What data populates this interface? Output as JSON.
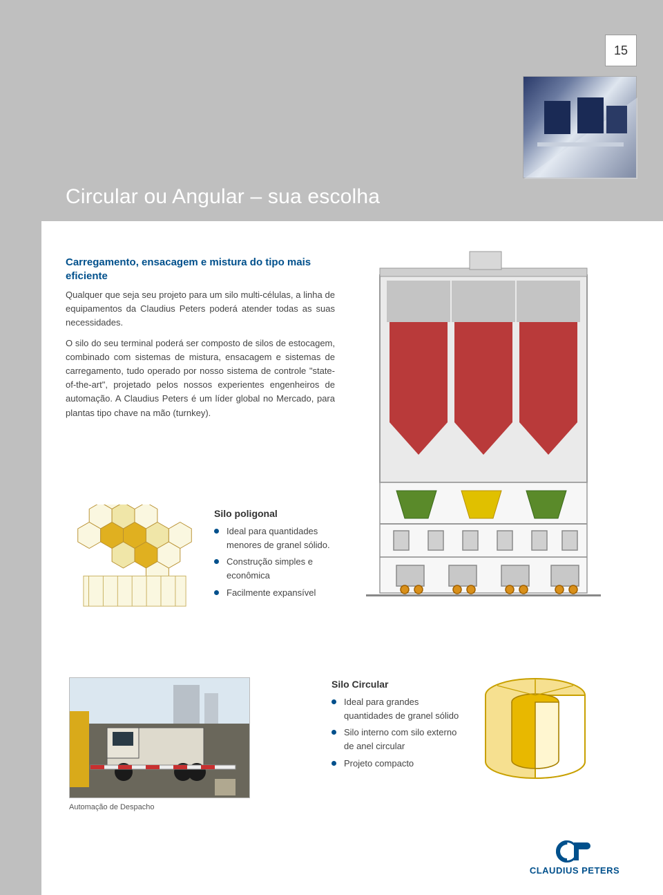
{
  "page_number": "15",
  "title": "Circular ou Angular – sua escolha",
  "subhead": "Carregamento, ensacagem e mistura  do tipo mais eficiente",
  "para1": "Qualquer que seja seu projeto para um silo multi-células, a linha de equipamentos da Claudius Peters poderá atender todas as suas necessidades.",
  "para2": "O silo do seu terminal poderá ser composto de silos de estocagem, combinado com sistemas de mistura, ensacagem e sistemas de carregamento, tudo operado por nosso sistema de controle \"state-of-the-art\", projetado pelos nossos experientes engenheiros de automação. A Claudius Peters é um líder global no Mercado, para plantas tipo chave na mão (turnkey).",
  "poly": {
    "title": "Silo poligonal",
    "bullets": [
      "Ideal para quantidades menores de granel sólido.",
      "Construção simples e econômica",
      "Facilmente expansível"
    ]
  },
  "caption": "Automação de Despacho",
  "circ": {
    "title": "Silo Circular",
    "bullets": [
      "Ideal para grandes quantidades de granel sólido",
      "Silo interno com silo externo de anel circular",
      "Projeto compacto"
    ]
  },
  "logo_text": "CLAUDIUS PETERS",
  "colors": {
    "brand": "#00508c",
    "grey_band": "#bfbfbf",
    "silo_red": "#b93a3a",
    "silo_green": "#5a8a2a",
    "silo_yellow": "#e0c000",
    "hex_dark": "#e0b020",
    "hex_light": "#f0e6a8",
    "hex_pale": "#faf7e0",
    "circ_outer": "#f6e090",
    "circ_inner": "#e8b800"
  },
  "diagram": {
    "type": "infographic",
    "background_color": "#f5f5f5",
    "struct_grey": "#b8b8b8",
    "struct_dark": "#8a8a8a",
    "silos": [
      {
        "color": "#b93a3a",
        "x": 0
      },
      {
        "color": "#b93a3a",
        "x": 1
      },
      {
        "color": "#b93a3a",
        "x": 2
      }
    ],
    "hoppers": [
      {
        "color": "#5a8a2a"
      },
      {
        "color": "#e0c000"
      },
      {
        "color": "#5a8a2a"
      }
    ]
  },
  "honeycomb": {
    "type": "infographic",
    "cells": [
      {
        "q": 0,
        "r": -2,
        "fill": "pale"
      },
      {
        "q": -1,
        "r": -1,
        "fill": "pale"
      },
      {
        "q": 0,
        "r": -1,
        "fill": "light"
      },
      {
        "q": 1,
        "r": -1,
        "fill": "pale"
      },
      {
        "q": -2,
        "r": 0,
        "fill": "pale"
      },
      {
        "q": -1,
        "r": 0,
        "fill": "dark"
      },
      {
        "q": 0,
        "r": 0,
        "fill": "dark"
      },
      {
        "q": 1,
        "r": 0,
        "fill": "light"
      },
      {
        "q": 2,
        "r": 0,
        "fill": "pale"
      },
      {
        "q": -1,
        "r": 1,
        "fill": "light"
      },
      {
        "q": 0,
        "r": 1,
        "fill": "dark"
      },
      {
        "q": 1,
        "r": 1,
        "fill": "pale"
      },
      {
        "q": 0,
        "r": 2,
        "fill": "pale"
      }
    ]
  }
}
